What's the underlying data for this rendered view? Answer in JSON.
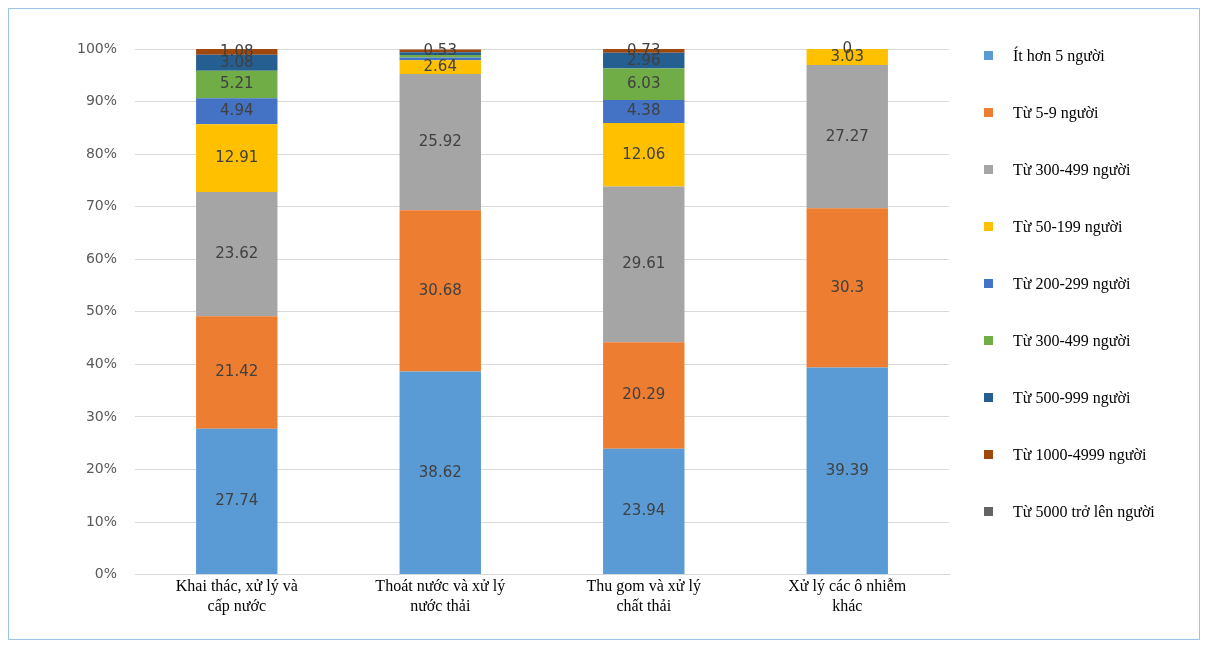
{
  "chart_data": {
    "type": "bar",
    "stacked": true,
    "categories": [
      "Khai thác, xử lý và cấp nước",
      "Thoát nước và xử lý nước thải",
      "Thu gom và xử lý chất thải",
      "Xử lý các ô nhiễm khác"
    ],
    "ylim": [
      0,
      100
    ],
    "yticks": [
      {
        "value": 0,
        "label": "0%"
      },
      {
        "value": 10,
        "label": "10%"
      },
      {
        "value": 20,
        "label": "20%"
      },
      {
        "value": 30,
        "label": "30%"
      },
      {
        "value": 40,
        "label": "40%"
      },
      {
        "value": 50,
        "label": "50%"
      },
      {
        "value": 60,
        "label": "60%"
      },
      {
        "value": 70,
        "label": "70%"
      },
      {
        "value": 80,
        "label": "80%"
      },
      {
        "value": 90,
        "label": "90%"
      },
      {
        "value": 100,
        "label": "100%"
      }
    ],
    "grid": "y",
    "legend": "right",
    "series": [
      {
        "name": "Ít hơn 5 người",
        "color": "#5b9bd5",
        "values": [
          27.74,
          38.62,
          23.94,
          39.39
        ],
        "value_labels": [
          "27.74",
          "38.62",
          "23.94",
          "39.39"
        ]
      },
      {
        "name": "Từ 5-9 người",
        "color": "#ed7d31",
        "values": [
          21.42,
          30.68,
          20.29,
          30.3
        ],
        "value_labels": [
          "21.42",
          "30.68",
          "20.29",
          "30.3"
        ]
      },
      {
        "name": "Từ 300-499 người",
        "color": "#a5a5a5",
        "values": [
          23.62,
          25.92,
          29.61,
          27.27
        ],
        "value_labels": [
          "23.62",
          "25.92",
          "29.61",
          "27.27"
        ]
      },
      {
        "name": "Từ 50-199 người",
        "color": "#ffc000",
        "values": [
          12.91,
          2.64,
          12.06,
          3.03
        ],
        "value_labels": [
          "12.91",
          "2.64",
          "12.06",
          "3.03"
        ]
      },
      {
        "name": "Từ 200-299 người",
        "color": "#4472c4",
        "values": [
          4.94,
          0.5,
          4.38,
          0
        ],
        "value_labels": [
          "4.94",
          null,
          "4.38",
          "0"
        ]
      },
      {
        "name": "Từ 300-499 người",
        "color": "#70ad47",
        "values": [
          5.21,
          0.5,
          6.03,
          null
        ],
        "value_labels": [
          "5.21",
          null,
          "6.03",
          null
        ]
      },
      {
        "name": "Từ 500-999 người",
        "color": "#255e91",
        "values": [
          3.08,
          0.5,
          2.96,
          null
        ],
        "value_labels": [
          "3.08",
          null,
          "2.96",
          null
        ]
      },
      {
        "name": "Từ 1000-4999 người",
        "color": "#9e480e",
        "values": [
          1.08,
          0.53,
          0.73,
          null
        ],
        "value_labels": [
          "1.08",
          "0.53",
          "0.73",
          null
        ]
      },
      {
        "name": "Từ 5000 trở lên người",
        "color": "#636363",
        "values": [
          null,
          null,
          null,
          null
        ],
        "value_labels": [
          null,
          null,
          null,
          null
        ]
      }
    ]
  }
}
